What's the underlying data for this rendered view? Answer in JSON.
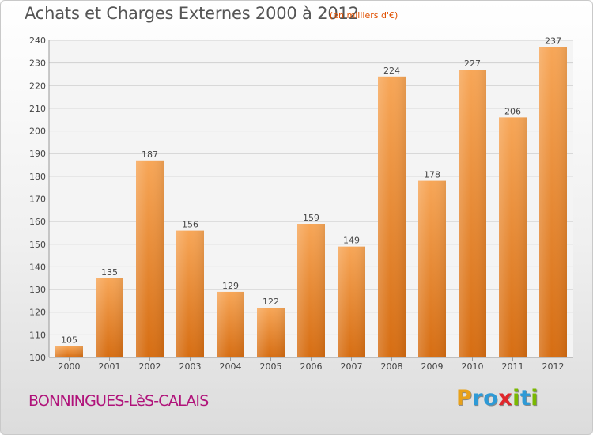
{
  "header": {
    "title": "Achats et Charges Externes 2000 à 2012",
    "subtitle": "(en milliers d'€)"
  },
  "footer": {
    "commune": "BONNINGUES-LèS-CALAIS",
    "logo_letters": [
      "P",
      "r",
      "o",
      "x",
      "i",
      "t",
      "i"
    ],
    "logo_colors": [
      "#e8a11a",
      "#2e9ad6",
      "#2e9ad6",
      "#e0262b",
      "#7ab800",
      "#2e9ad6",
      "#7ab800"
    ]
  },
  "chart_data": {
    "type": "bar",
    "categories": [
      "2000",
      "2001",
      "2002",
      "2003",
      "2004",
      "2005",
      "2006",
      "2007",
      "2008",
      "2009",
      "2010",
      "2011",
      "2012"
    ],
    "values": [
      105,
      135,
      187,
      156,
      129,
      122,
      159,
      149,
      224,
      178,
      227,
      206,
      237
    ],
    "title": "Achats et Charges Externes 2000 à 2012",
    "subtitle": "(en milliers d'€)",
    "ylim": [
      100,
      240
    ],
    "yticks": [
      100,
      110,
      120,
      130,
      140,
      150,
      160,
      170,
      180,
      190,
      200,
      210,
      220,
      230,
      240
    ],
    "grid": true,
    "bar_color": "#f19a3e"
  }
}
